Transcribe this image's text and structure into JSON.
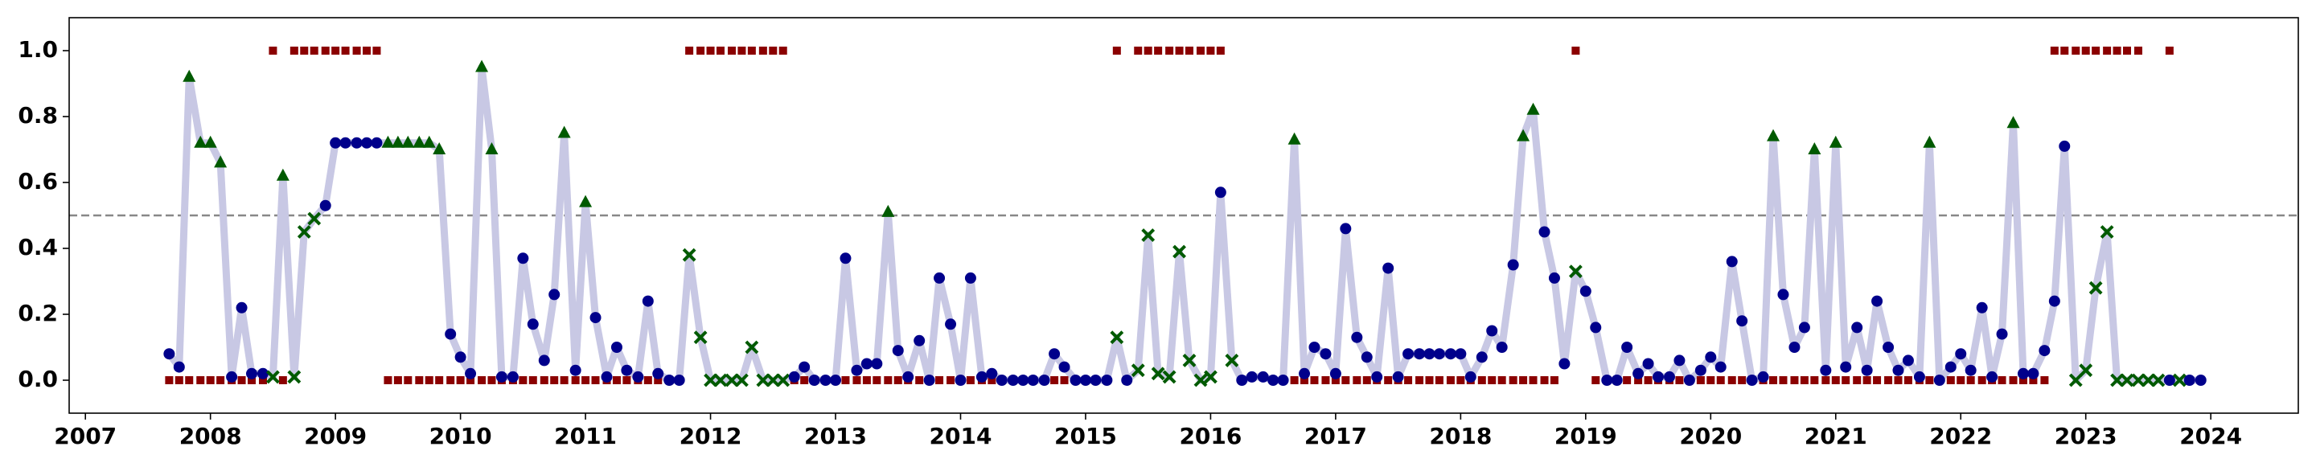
{
  "chart_data": {
    "type": "line",
    "x": [
      2007.67,
      2007.75,
      2007.83,
      2007.92,
      2008.0,
      2008.08,
      2008.17,
      2008.25,
      2008.33,
      2008.42,
      2008.5,
      2008.58,
      2008.67,
      2008.75,
      2008.83,
      2008.92,
      2009.0,
      2009.08,
      2009.17,
      2009.25,
      2009.33,
      2009.42,
      2009.5,
      2009.58,
      2009.67,
      2009.75,
      2009.83,
      2009.92,
      2010.0,
      2010.08,
      2010.17,
      2010.25,
      2010.33,
      2010.42,
      2010.5,
      2010.58,
      2010.67,
      2010.75,
      2010.83,
      2010.92,
      2011.0,
      2011.08,
      2011.17,
      2011.25,
      2011.33,
      2011.42,
      2011.5,
      2011.58,
      2011.67,
      2011.75,
      2011.83,
      2011.92,
      2012.0,
      2012.08,
      2012.17,
      2012.25,
      2012.33,
      2012.42,
      2012.5,
      2012.58,
      2012.67,
      2012.75,
      2012.83,
      2012.92,
      2013.0,
      2013.08,
      2013.17,
      2013.25,
      2013.33,
      2013.42,
      2013.5,
      2013.58,
      2013.67,
      2013.75,
      2013.83,
      2013.92,
      2014.0,
      2014.08,
      2014.17,
      2014.25,
      2014.33,
      2014.42,
      2014.5,
      2014.58,
      2014.67,
      2014.75,
      2014.83,
      2014.92,
      2015.0,
      2015.08,
      2015.17,
      2015.25,
      2015.33,
      2015.42,
      2015.5,
      2015.58,
      2015.67,
      2015.75,
      2015.83,
      2015.92,
      2016.0,
      2016.08,
      2016.17,
      2016.25,
      2016.33,
      2016.42,
      2016.5,
      2016.58,
      2016.67,
      2016.75,
      2016.83,
      2016.92,
      2017.0,
      2017.08,
      2017.17,
      2017.25,
      2017.33,
      2017.42,
      2017.5,
      2017.58,
      2017.67,
      2017.75,
      2017.83,
      2017.92,
      2018.0,
      2018.08,
      2018.17,
      2018.25,
      2018.33,
      2018.42,
      2018.5,
      2018.58,
      2018.67,
      2018.75,
      2018.83,
      2018.92,
      2019.0,
      2019.08,
      2019.17,
      2019.25,
      2019.33,
      2019.42,
      2019.5,
      2019.58,
      2019.67,
      2019.75,
      2019.83,
      2019.92,
      2020.0,
      2020.08,
      2020.17,
      2020.25,
      2020.33,
      2020.42,
      2020.5,
      2020.58,
      2020.67,
      2020.75,
      2020.83,
      2020.92,
      2021.0,
      2021.08,
      2021.17,
      2021.25,
      2021.33,
      2021.42,
      2021.5,
      2021.58,
      2021.67,
      2021.75,
      2021.83,
      2021.92,
      2022.0,
      2022.08,
      2022.17,
      2022.25,
      2022.33,
      2022.42,
      2022.5,
      2022.58,
      2022.67,
      2022.75,
      2022.83,
      2022.92,
      2023.0,
      2023.08,
      2023.17,
      2023.25,
      2023.33,
      2023.42,
      2023.5,
      2023.58,
      2023.67,
      2023.75,
      2023.83,
      2023.92
    ],
    "series": [
      {
        "color": "#c8c8e4",
        "marker_colors": {
          "o": "#00008b",
          "^": "#005a00",
          "x": "#005a00"
        },
        "values": [
          0.08,
          0.04,
          0.92,
          0.72,
          0.72,
          0.66,
          0.01,
          0.22,
          0.02,
          0.02,
          0.01,
          0.62,
          0.01,
          0.45,
          0.49,
          0.53,
          0.72,
          0.72,
          0.72,
          0.72,
          0.72,
          0.72,
          0.72,
          0.72,
          0.72,
          0.72,
          0.7,
          0.14,
          0.07,
          0.02,
          0.95,
          0.7,
          0.01,
          0.01,
          0.37,
          0.17,
          0.06,
          0.26,
          0.75,
          0.03,
          0.54,
          0.19,
          0.01,
          0.1,
          0.03,
          0.01,
          0.24,
          0.02,
          0,
          0,
          0.38,
          0.13,
          0,
          0,
          0,
          0,
          0.1,
          0,
          0,
          0,
          0.01,
          0.04,
          0,
          0,
          0,
          0.37,
          0.03,
          0.05,
          0.05,
          0.51,
          0.09,
          0.01,
          0.12,
          0,
          0.31,
          0.17,
          0,
          0.31,
          0.01,
          0.02,
          0,
          0,
          0,
          0,
          0,
          0.08,
          0.04,
          0,
          0,
          0,
          0,
          0.13,
          0,
          0.03,
          0.44,
          0.02,
          0.01,
          0.39,
          0.06,
          0,
          0.01,
          0.57,
          0.06,
          0,
          0.01,
          0.01,
          0,
          0,
          0.73,
          0.02,
          0.1,
          0.08,
          0.02,
          0.46,
          0.13,
          0.07,
          0.01,
          0.34,
          0.01,
          0.08,
          0.08,
          0.08,
          0.08,
          0.08,
          0.08,
          0.01,
          0.07,
          0.15,
          0.1,
          0.35,
          0.74,
          0.82,
          0.45,
          0.31,
          0.05,
          0.33,
          0.27,
          0.16,
          0,
          0,
          0.1,
          0.02,
          0.05,
          0.01,
          0.01,
          0.06,
          0,
          0.03,
          0.07,
          0.04,
          0.36,
          0.18,
          0,
          0.01,
          0.74,
          0.26,
          0.1,
          0.16,
          0.7,
          0.03,
          0.72,
          0.04,
          0.16,
          0.03,
          0.24,
          0.1,
          0.03,
          0.06,
          0.01,
          0.72,
          0,
          0.04,
          0.08,
          0.03,
          0.22,
          0.01,
          0.14,
          0.78,
          0.02,
          0.02,
          0.09,
          0.24,
          0.71,
          0,
          0.03,
          0.28,
          0.45,
          0,
          0,
          0,
          0,
          0,
          0,
          0,
          0,
          0
        ],
        "markers": [
          "o",
          "o",
          "^",
          "^",
          "^",
          "^",
          "o",
          "o",
          "o",
          "o",
          "x",
          "^",
          "x",
          "x",
          "x",
          "o",
          "o",
          "o",
          "o",
          "o",
          "o",
          "^",
          "^",
          "^",
          "^",
          "^",
          "^",
          "o",
          "o",
          "o",
          "^",
          "^",
          "o",
          "o",
          "o",
          "o",
          "o",
          "o",
          "^",
          "o",
          "^",
          "o",
          "o",
          "o",
          "o",
          "o",
          "o",
          "o",
          "o",
          "o",
          "x",
          "x",
          "x",
          "x",
          "x",
          "x",
          "x",
          "x",
          "x",
          "x",
          "o",
          "o",
          "o",
          "o",
          "o",
          "o",
          "o",
          "o",
          "o",
          "^",
          "o",
          "o",
          "o",
          "o",
          "o",
          "o",
          "o",
          "o",
          "o",
          "o",
          "o",
          "o",
          "o",
          "o",
          "o",
          "o",
          "o",
          "o",
          "o",
          "o",
          "o",
          "x",
          "o",
          "x",
          "x",
          "x",
          "x",
          "x",
          "x",
          "x",
          "x",
          "o",
          "x",
          "o",
          "o",
          "o",
          "o",
          "o",
          "^",
          "o",
          "o",
          "o",
          "o",
          "o",
          "o",
          "o",
          "o",
          "o",
          "o",
          "o",
          "o",
          "o",
          "o",
          "o",
          "o",
          "o",
          "o",
          "o",
          "o",
          "o",
          "^",
          "^",
          "o",
          "o",
          "o",
          "x",
          "o",
          "o",
          "o",
          "o",
          "o",
          "o",
          "o",
          "o",
          "o",
          "o",
          "o",
          "o",
          "o",
          "o",
          "o",
          "o",
          "o",
          "o",
          "^",
          "o",
          "o",
          "o",
          "^",
          "o",
          "^",
          "o",
          "o",
          "o",
          "o",
          "o",
          "o",
          "o",
          "o",
          "^",
          "o",
          "o",
          "o",
          "o",
          "o",
          "o",
          "o",
          "^",
          "o",
          "o",
          "o",
          "o",
          "o",
          "x",
          "x",
          "x",
          "x",
          "x",
          "x",
          "x",
          "x",
          "x",
          "o",
          "x",
          "o",
          "o"
        ]
      },
      {
        "color": "#8b0000",
        "marker": "s",
        "values": [
          0,
          0,
          0,
          0,
          0,
          0,
          0,
          0,
          0,
          0,
          1,
          0,
          1,
          1,
          1,
          1,
          1,
          1,
          1,
          1,
          1,
          0,
          0,
          0,
          0,
          0,
          0,
          0,
          0,
          0,
          0,
          0,
          0,
          0,
          0,
          0,
          0,
          0,
          0,
          0,
          0,
          0,
          0,
          0,
          0,
          0,
          0,
          0,
          0,
          null,
          1,
          1,
          1,
          1,
          1,
          1,
          1,
          1,
          1,
          1,
          0,
          0,
          0,
          0,
          0,
          0,
          0,
          0,
          0,
          0,
          0,
          0,
          0,
          0,
          0,
          0,
          0,
          0,
          0,
          0,
          0,
          0,
          0,
          0,
          0,
          0,
          0,
          0,
          0,
          0,
          0,
          1,
          null,
          1,
          1,
          1,
          1,
          1,
          1,
          1,
          1,
          1,
          null,
          null,
          null,
          null,
          null,
          0,
          0,
          0,
          0,
          0,
          0,
          0,
          0,
          0,
          0,
          0,
          0,
          0,
          0,
          0,
          0,
          0,
          0,
          0,
          0,
          0,
          0,
          0,
          0,
          0,
          0,
          0,
          null,
          1,
          null,
          0,
          0,
          0,
          0,
          0,
          0,
          0,
          0,
          0,
          0,
          0,
          0,
          0,
          0,
          0,
          0,
          0,
          0,
          0,
          0,
          0,
          0,
          0,
          0,
          0,
          0,
          0,
          0,
          0,
          0,
          0,
          0,
          0,
          0,
          0,
          0,
          0,
          0,
          0,
          0,
          0,
          0,
          0,
          0,
          1,
          1,
          1,
          1,
          1,
          1,
          1,
          1,
          1,
          null,
          null,
          1,
          null,
          null,
          null
        ]
      }
    ],
    "hline": {
      "value": 0.5,
      "color": "#888888"
    },
    "xlim": [
      2006.87,
      2024.7
    ],
    "xticks": [
      2007,
      2008,
      2009,
      2010,
      2011,
      2012,
      2013,
      2014,
      2015,
      2016,
      2017,
      2018,
      2019,
      2020,
      2021,
      2022,
      2023,
      2024
    ],
    "ylim": [
      -0.1,
      1.1
    ],
    "yticks": [
      {
        "value": 0,
        "label": "0.0"
      },
      0.2,
      0.4,
      0.6,
      0.8,
      {
        "value": 1,
        "label": "1.0"
      }
    ]
  }
}
